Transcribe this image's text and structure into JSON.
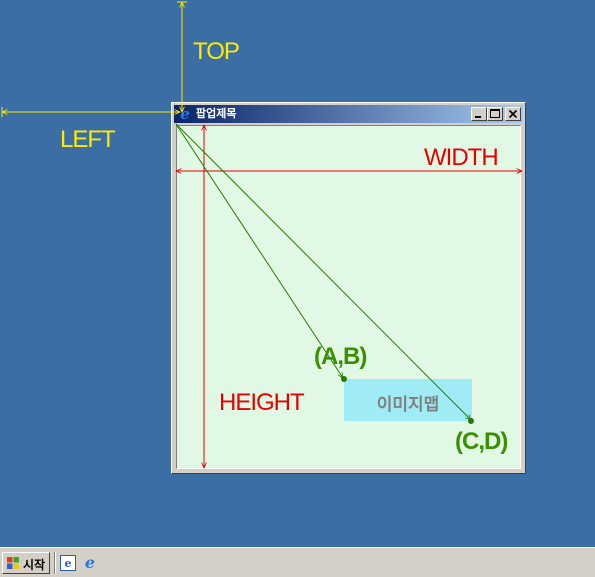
{
  "popup": {
    "title": "팝업제목",
    "controls": {
      "minimize": "minimize",
      "maximize": "maximize",
      "close": "close"
    }
  },
  "labels": {
    "top": "TOP",
    "left": "LEFT",
    "width": "WIDTH",
    "height": "HEIGHT",
    "point_ab": "(A,B)",
    "point_cd": "(C,D)"
  },
  "imagemap": {
    "label": "이미지맵"
  },
  "taskbar": {
    "start_label": "시작"
  },
  "colors": {
    "desktop": "#3a6ea5",
    "position_lines": "#ffeb00",
    "size_lines": "#e60000",
    "coordinate_lines": "#2a7a00",
    "popup_background": "#e0f8e4",
    "imagemap_background": "#a0ecf6"
  },
  "icons": [
    "ie-icon",
    "minimize-icon",
    "maximize-icon",
    "close-icon",
    "windows-logo-icon",
    "show-desktop-icon"
  ]
}
